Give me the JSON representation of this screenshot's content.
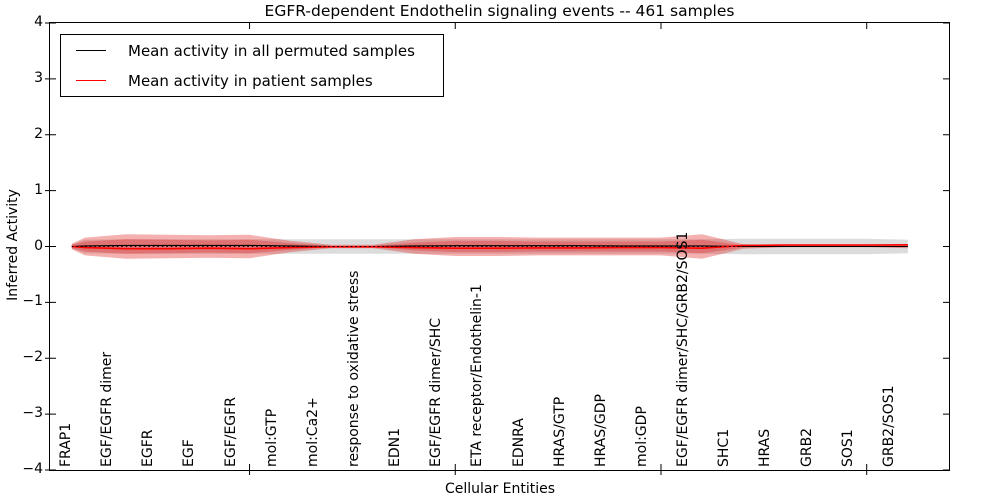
{
  "title": "EGFR-dependent Endothelin signaling events -- 461 samples",
  "legend": {
    "items": [
      {
        "label": "Mean activity in all permuted samples",
        "color": "#000000"
      },
      {
        "label": "Mean activity in patient samples",
        "color": "#ff0000"
      }
    ]
  },
  "chart_data": {
    "type": "line",
    "title": "EGFR-dependent Endothelin signaling events -- 461 samples",
    "xlabel": "Cellular Entities",
    "ylabel": "Inferred Activity",
    "ylim": [
      -4,
      4
    ],
    "xlim": [
      0.15,
      22.0
    ],
    "yticks": [
      4,
      3,
      2,
      1,
      0,
      -1,
      -2,
      -3,
      -4
    ],
    "xticks": [
      5,
      10,
      15,
      20
    ],
    "grid": false,
    "legend_position": "upper left",
    "categories": [
      "FRAP1",
      "EGF/EGFR dimer",
      "EGFR",
      "EGF",
      "EGF/EGFR",
      "mol:GTP",
      "mol:Ca2+",
      "response to oxidative stress",
      "EDN1",
      "EGF/EGFR dimer/SHC",
      "ETA receptor/Endothelin-1",
      "EDNRA",
      "HRAS/GTP",
      "HRAS/GDP",
      "mol:GDP",
      "EGF/EGFR dimer/SHC/GRB2/SOS1",
      "SHC1",
      "HRAS",
      "GRB2",
      "SOS1",
      "GRB2/SOS1"
    ],
    "category_positions": [
      1,
      2,
      3,
      4,
      5,
      6,
      7,
      8,
      9,
      10,
      11,
      12,
      13,
      14,
      15,
      16,
      17,
      18,
      19,
      20,
      21
    ],
    "band_x": [
      0.68,
      1,
      2,
      3,
      4,
      5,
      6,
      7,
      8,
      9,
      10,
      11,
      12,
      13,
      14,
      15,
      16,
      17,
      18,
      19,
      20,
      21
    ],
    "series": [
      {
        "name": "Mean activity in all permuted samples",
        "color": "#000000",
        "style": "solid",
        "values": [
          0,
          0.01,
          0.02,
          0.02,
          0.02,
          0.02,
          0.01,
          0,
          0,
          0.01,
          0.015,
          0.015,
          0.015,
          0.015,
          0.01,
          0.01,
          0.01,
          0,
          0,
          0,
          0,
          0
        ]
      },
      {
        "name": "Mean activity in patient samples",
        "color": "#ff0000",
        "style": "solid",
        "values": [
          0,
          -0.02,
          -0.04,
          -0.04,
          -0.03,
          -0.04,
          -0.02,
          -0.005,
          -0.005,
          -0.02,
          -0.03,
          -0.03,
          -0.025,
          -0.025,
          -0.02,
          -0.02,
          -0.03,
          0.02,
          0.025,
          0.025,
          0.025,
          0.03
        ]
      },
      {
        "name": "zero-reference",
        "color": "#000000",
        "style": "dotted",
        "values": [
          0,
          0,
          0,
          0,
          0,
          0,
          0,
          0,
          0,
          0,
          0,
          0,
          0,
          0,
          0,
          0,
          0,
          0,
          0,
          0,
          0,
          0
        ]
      }
    ],
    "bands": [
      {
        "name": "permuted-std-band",
        "color": "rgba(128,128,128,0.28)",
        "half_widths": [
          0.04,
          0.12,
          0.13,
          0.13,
          0.13,
          0.13,
          0.13,
          0.13,
          0.13,
          0.13,
          0.13,
          0.13,
          0.13,
          0.13,
          0.13,
          0.13,
          0.13,
          0.14,
          0.14,
          0.14,
          0.14,
          0.12
        ]
      },
      {
        "name": "patient-std-band-outer",
        "color": "rgba(225,30,30,0.35)",
        "half_widths": [
          0.05,
          0.16,
          0.22,
          0.21,
          0.2,
          0.21,
          0.1,
          0.03,
          0.03,
          0.13,
          0.17,
          0.17,
          0.16,
          0.16,
          0.16,
          0.16,
          0.22,
          0.04,
          0.015,
          0.015,
          0.015,
          0.03
        ]
      },
      {
        "name": "patient-std-band-inner",
        "color": "rgba(225,30,30,0.30)",
        "half_widths": [
          0.03,
          0.09,
          0.13,
          0.12,
          0.11,
          0.12,
          0.06,
          0.015,
          0.015,
          0.07,
          0.1,
          0.1,
          0.09,
          0.09,
          0.09,
          0.09,
          0.12,
          0.02,
          0.008,
          0.008,
          0.008,
          0.015
        ]
      }
    ]
  }
}
